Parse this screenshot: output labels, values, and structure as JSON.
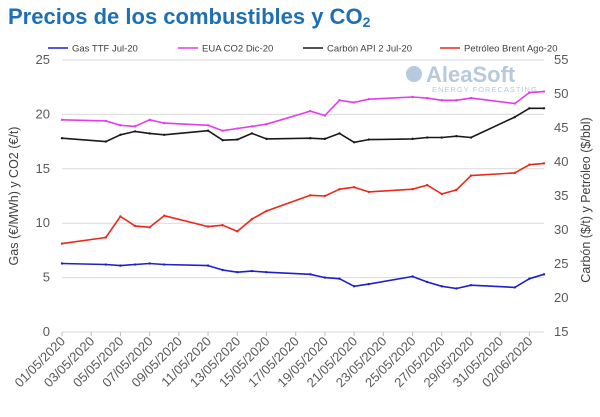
{
  "title": {
    "main": "Precios de los combustibles  y CO",
    "sub": "2"
  },
  "logo": {
    "brand": "AleaSoft",
    "tagline": "ENERGY FORECASTING"
  },
  "chart_data": {
    "type": "line",
    "x": [
      "01/05/2020",
      "04/05/2020",
      "05/05/2020",
      "06/05/2020",
      "07/05/2020",
      "08/05/2020",
      "11/05/2020",
      "12/05/2020",
      "13/05/2020",
      "14/05/2020",
      "15/05/2020",
      "18/05/2020",
      "19/05/2020",
      "20/05/2020",
      "21/05/2020",
      "22/05/2020",
      "25/05/2020",
      "26/05/2020",
      "27/05/2020",
      "28/05/2020",
      "29/05/2020",
      "01/06/2020",
      "02/06/2020",
      "03/06/2020"
    ],
    "x_tick_labels": [
      "01/05/2020",
      "03/05/2020",
      "05/05/2020",
      "07/05/2020",
      "09/05/2020",
      "11/05/2020",
      "13/05/2020",
      "15/05/2020",
      "17/05/2020",
      "19/05/2020",
      "21/05/2020",
      "23/05/2020",
      "25/05/2020",
      "27/05/2020",
      "29/05/2020",
      "31/05/2020",
      "02/06/2020"
    ],
    "ylabel_left": "Gas (€/MWh) y CO2 (€/t)",
    "ylabel_right": "Carbón ($/t) y Petróleo ($/bbl)",
    "ylim_left": [
      0,
      25
    ],
    "yticks_left": [
      0,
      5,
      10,
      15,
      20,
      25
    ],
    "ylim_right": [
      15,
      55
    ],
    "yticks_right": [
      15,
      20,
      25,
      30,
      35,
      40,
      45,
      50,
      55
    ],
    "grid": "horizontal",
    "legend_position": "top",
    "series": [
      {
        "name": "Gas TTF Jul-20",
        "axis": "left",
        "color": "#1f1fcc",
        "values": [
          6.3,
          6.2,
          6.1,
          6.2,
          6.3,
          6.2,
          6.1,
          5.7,
          5.5,
          5.6,
          5.5,
          5.3,
          5.0,
          4.9,
          4.2,
          4.4,
          5.1,
          4.6,
          4.2,
          4.0,
          4.3,
          4.1,
          4.9,
          5.3
        ]
      },
      {
        "name": "EUA CO2 Dic-20",
        "axis": "left",
        "color": "#e23ee8",
        "values": [
          19.5,
          19.4,
          19.0,
          18.9,
          19.5,
          19.2,
          19.0,
          18.5,
          18.7,
          18.9,
          19.1,
          20.3,
          19.9,
          21.3,
          21.1,
          21.4,
          21.6,
          21.5,
          21.3,
          21.3,
          21.5,
          21.0,
          22.0,
          22.1
        ]
      },
      {
        "name": "Carbón API 2 Jul-20",
        "axis": "right",
        "color": "#1a1a1a",
        "values": [
          43.5,
          43.0,
          44.0,
          44.5,
          44.2,
          44.0,
          44.6,
          43.2,
          43.3,
          44.2,
          43.4,
          43.5,
          43.4,
          44.2,
          42.9,
          43.3,
          43.4,
          43.6,
          43.6,
          43.8,
          43.6,
          46.6,
          47.9,
          47.9
        ]
      },
      {
        "name": "Petróleo Brent Ago-20",
        "axis": "right",
        "color": "#e8291c",
        "values": [
          28.0,
          28.9,
          32.0,
          30.6,
          30.4,
          32.1,
          30.5,
          30.7,
          29.8,
          31.6,
          32.8,
          35.1,
          35.0,
          36.0,
          36.3,
          35.6,
          36.0,
          36.6,
          35.3,
          35.9,
          38.0,
          38.4,
          39.6,
          39.8
        ]
      }
    ]
  }
}
